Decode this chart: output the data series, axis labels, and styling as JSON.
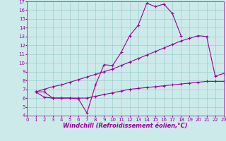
{
  "line1_x": [
    1,
    2,
    3,
    4,
    5,
    6,
    7,
    8,
    9,
    10,
    11,
    12,
    13,
    14,
    15,
    16,
    17,
    18
  ],
  "line1_y": [
    6.7,
    6.7,
    6.0,
    6.0,
    6.0,
    5.9,
    4.3,
    7.5,
    9.8,
    9.7,
    11.2,
    13.1,
    14.3,
    16.8,
    16.4,
    16.7,
    15.6,
    13.1
  ],
  "line2_x": [
    1,
    2,
    3,
    4,
    5,
    6,
    7,
    8,
    9,
    10,
    11,
    12,
    13,
    14,
    15,
    16,
    17,
    18,
    19,
    20,
    21,
    22,
    23
  ],
  "line2_y": [
    6.7,
    7.0,
    7.3,
    7.5,
    7.8,
    8.1,
    8.4,
    8.7,
    9.0,
    9.3,
    9.7,
    10.1,
    10.5,
    10.9,
    11.3,
    11.7,
    12.1,
    12.5,
    12.8,
    13.1,
    13.0,
    8.5,
    8.8
  ],
  "line3_x": [
    1,
    2,
    3,
    4,
    5,
    6,
    7,
    8,
    9,
    10,
    11,
    12,
    13,
    14,
    15,
    16,
    17,
    18,
    19,
    20,
    21,
    22,
    23
  ],
  "line3_y": [
    6.7,
    6.1,
    6.0,
    6.0,
    6.0,
    6.0,
    6.0,
    6.2,
    6.4,
    6.6,
    6.8,
    7.0,
    7.1,
    7.2,
    7.3,
    7.4,
    7.5,
    7.6,
    7.7,
    7.8,
    7.9,
    7.9,
    7.9
  ],
  "line_color": "#990099",
  "bg_color": "#cdeaea",
  "grid_color": "#a0cccc",
  "xlim": [
    0,
    23
  ],
  "ylim": [
    4,
    17
  ],
  "xticks": [
    0,
    1,
    2,
    3,
    4,
    5,
    6,
    7,
    8,
    9,
    10,
    11,
    12,
    13,
    14,
    15,
    16,
    17,
    18,
    19,
    20,
    21,
    22,
    23
  ],
  "yticks": [
    4,
    5,
    6,
    7,
    8,
    9,
    10,
    11,
    12,
    13,
    14,
    15,
    16,
    17
  ],
  "xlabel": "Windchill (Refroidissement éolien,°C)",
  "marker": "+",
  "marker_size": 3,
  "line_width": 0.8,
  "tick_fontsize": 5,
  "xlabel_fontsize": 6
}
